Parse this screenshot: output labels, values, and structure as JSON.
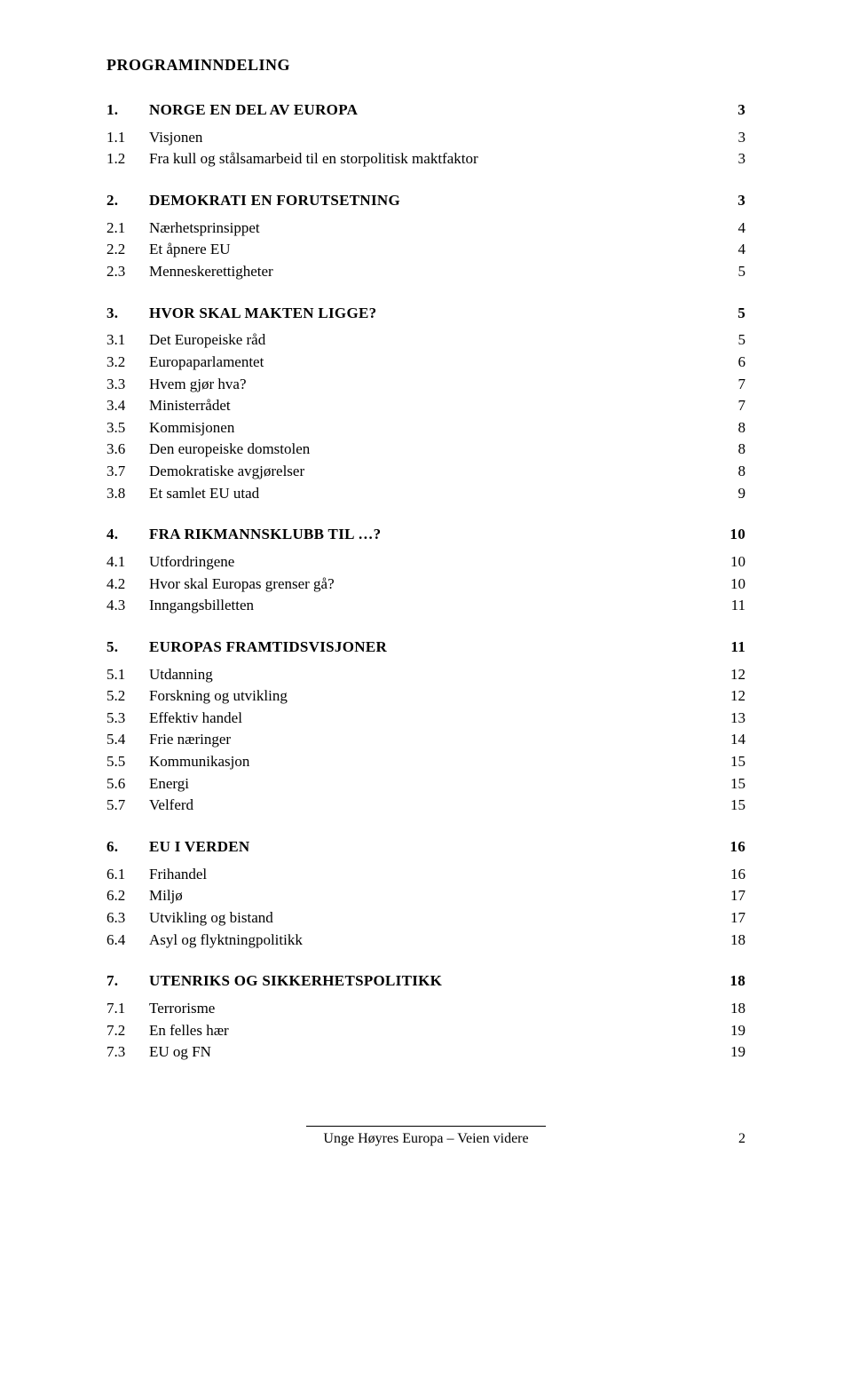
{
  "page_title": "PROGRAMINNDELING",
  "footer_text": "Unge Høyres Europa – Veien videre",
  "footer_page": "2",
  "sections": [
    {
      "num": "1.",
      "title": "NORGE EN DEL AV EUROPA",
      "page": "3",
      "items": [
        {
          "num": "1.1",
          "label": "Visjonen",
          "page": "3"
        },
        {
          "num": "1.2",
          "label": "Fra kull og stålsamarbeid til en storpolitisk maktfaktor",
          "page": "3"
        }
      ]
    },
    {
      "num": "2.",
      "title": "DEMOKRATI EN FORUTSETNING",
      "page": "3",
      "items": [
        {
          "num": "2.1",
          "label": "Nærhetsprinsippet",
          "page": "4"
        },
        {
          "num": "2.2",
          "label": "Et åpnere EU",
          "page": "4"
        },
        {
          "num": "2.3",
          "label": "Menneskerettigheter",
          "page": "5"
        }
      ]
    },
    {
      "num": "3.",
      "title": "HVOR SKAL MAKTEN LIGGE?",
      "page": "5",
      "items": [
        {
          "num": "3.1",
          "label": "Det Europeiske råd",
          "page": "5"
        },
        {
          "num": "3.2",
          "label": "Europaparlamentet",
          "page": "6"
        },
        {
          "num": "3.3",
          "label": "Hvem gjør hva?",
          "page": "7"
        },
        {
          "num": "3.4",
          "label": "Ministerrådet",
          "page": "7"
        },
        {
          "num": "3.5",
          "label": "Kommisjonen",
          "page": "8"
        },
        {
          "num": "3.6",
          "label": "Den europeiske domstolen",
          "page": "8"
        },
        {
          "num": "3.7",
          "label": "Demokratiske avgjørelser",
          "page": "8"
        },
        {
          "num": "3.8",
          "label": "Et samlet EU utad",
          "page": "9"
        }
      ]
    },
    {
      "num": "4.",
      "title": "FRA RIKMANNSKLUBB TIL …?",
      "page": "10",
      "items": [
        {
          "num": "4.1",
          "label": "Utfordringene",
          "page": "10"
        },
        {
          "num": "4.2",
          "label": "Hvor skal Europas grenser gå?",
          "page": "10"
        },
        {
          "num": "4.3",
          "label": "Inngangsbilletten",
          "page": "11"
        }
      ]
    },
    {
      "num": "5.",
      "title": "EUROPAS FRAMTIDSVISJONER",
      "page": "11",
      "items": [
        {
          "num": "5.1",
          "label": "Utdanning",
          "page": "12"
        },
        {
          "num": "5.2",
          "label": "Forskning og utvikling",
          "page": "12"
        },
        {
          "num": "5.3",
          "label": "Effektiv handel",
          "page": "13"
        },
        {
          "num": "5.4",
          "label": "Frie næringer",
          "page": "14"
        },
        {
          "num": "5.5",
          "label": "Kommunikasjon",
          "page": "15"
        },
        {
          "num": "5.6",
          "label": "Energi",
          "page": "15"
        },
        {
          "num": "5.7",
          "label": "Velferd",
          "page": "15"
        }
      ]
    },
    {
      "num": "6.",
      "title": "EU I VERDEN",
      "page": "16",
      "items": [
        {
          "num": "6.1",
          "label": "Frihandel",
          "page": "16"
        },
        {
          "num": "6.2",
          "label": "Miljø",
          "page": "17"
        },
        {
          "num": "6.3",
          "label": "Utvikling og bistand",
          "page": "17"
        },
        {
          "num": "6.4",
          "label": "Asyl og flyktningpolitikk",
          "page": "18"
        }
      ]
    },
    {
      "num": "7.",
      "title": "UTENRIKS OG SIKKERHETSPOLITIKK",
      "page": "18",
      "items": [
        {
          "num": "7.1",
          "label": "Terrorisme",
          "page": "18"
        },
        {
          "num": "7.2",
          "label": "En felles hær",
          "page": "19"
        },
        {
          "num": "7.3",
          "label": "EU og FN",
          "page": "19"
        }
      ]
    }
  ]
}
